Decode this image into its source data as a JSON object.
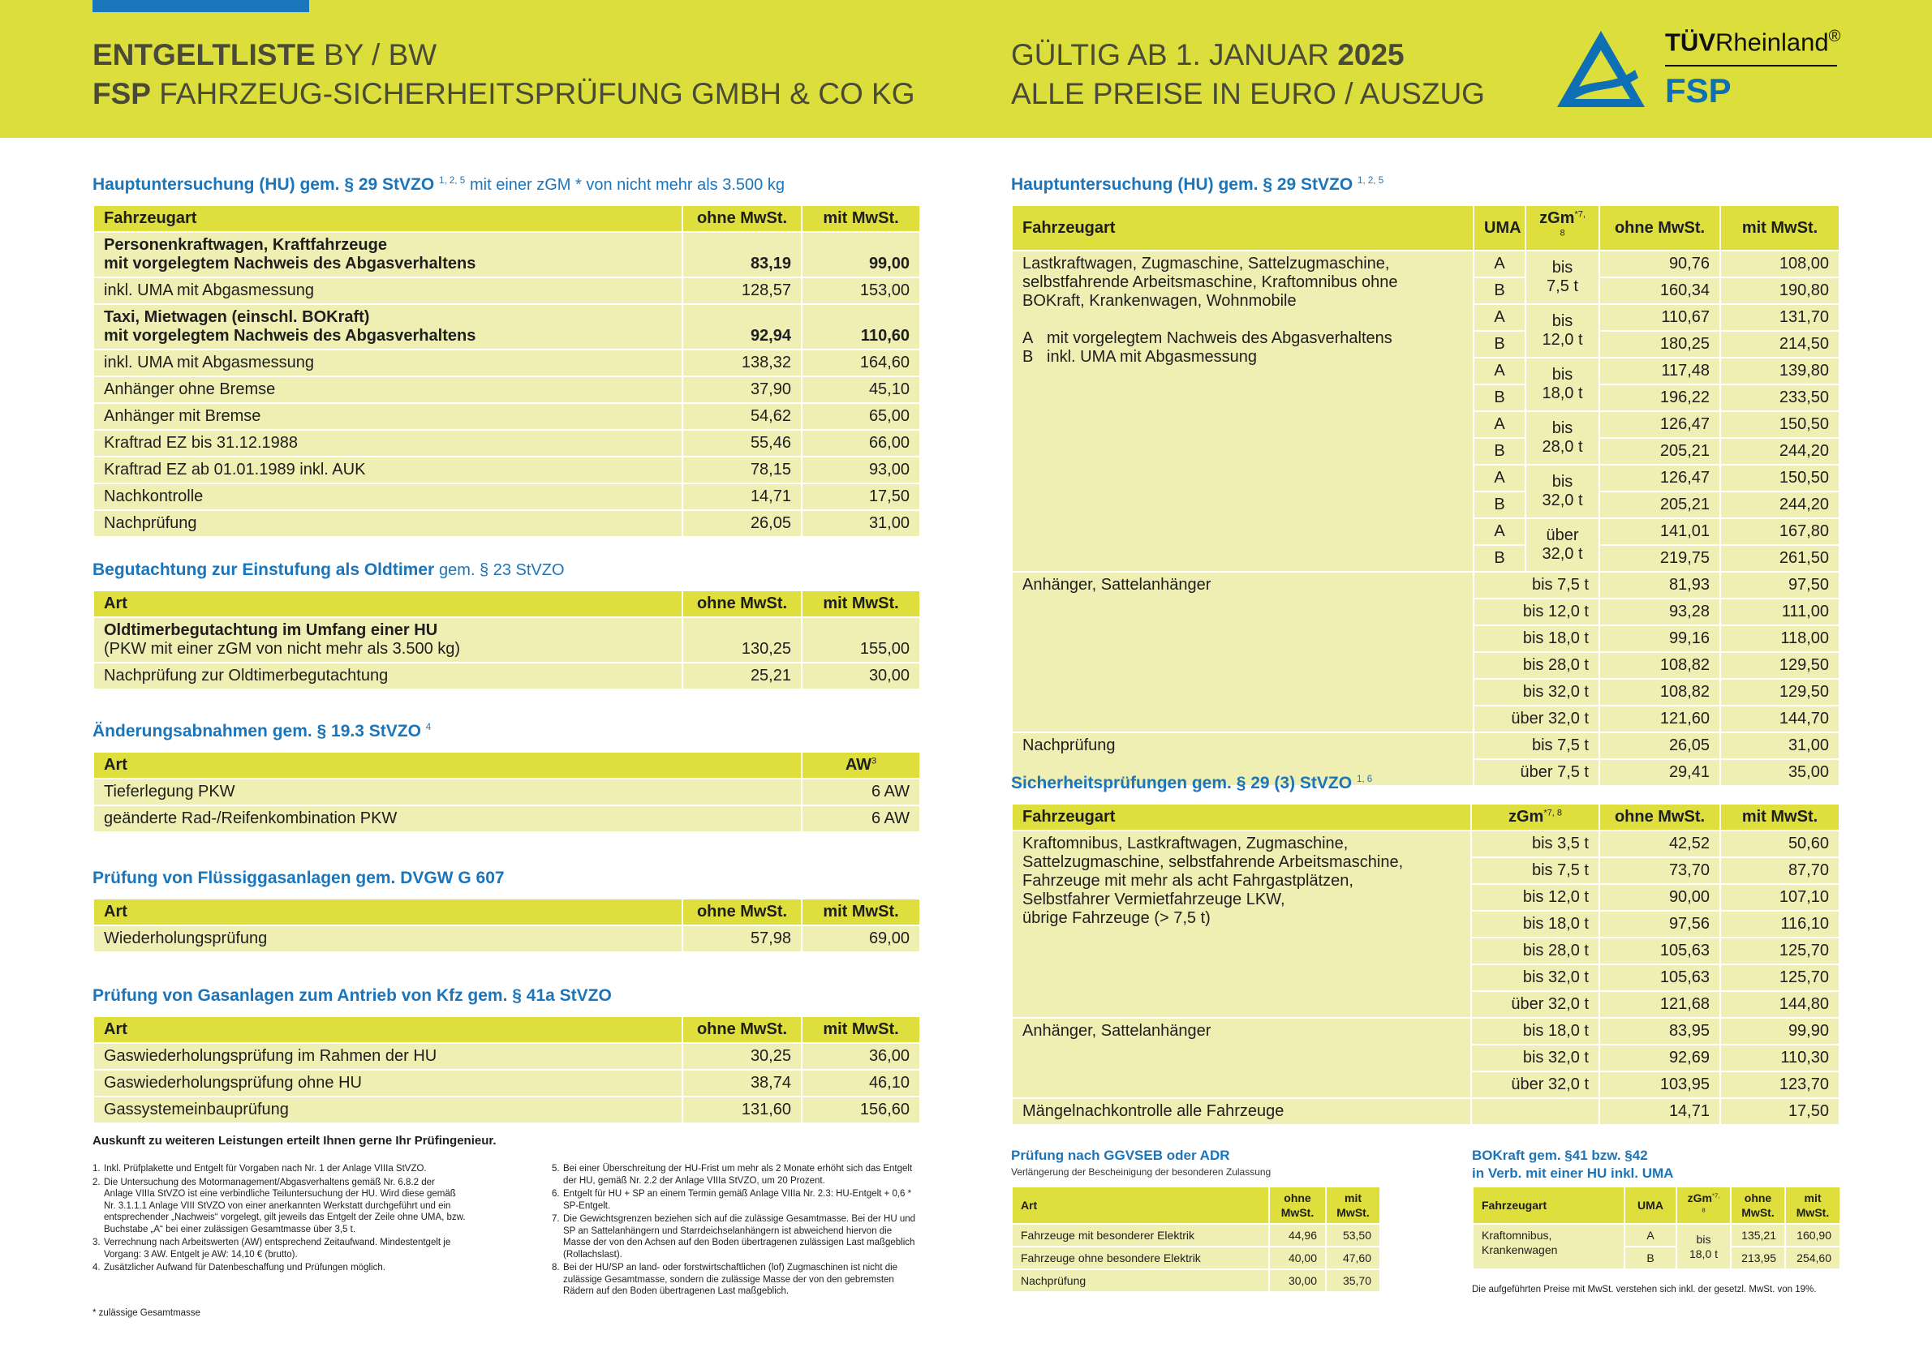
{
  "header": {
    "title_bold": "ENTGELTLISTE",
    "title_rest": "BY / BW",
    "company_bold": "FSP",
    "company_rest": "FAHRZEUG-SICHERHEITSPRÜFUNG GMBH & CO KG",
    "valid": "GÜLTIG AB 1. JANUAR",
    "valid_year": "2025",
    "prices": "ALLE PREISE IN EURO / AUSZUG",
    "logo_tuv": "TÜV",
    "logo_rheinland": "Rheinland",
    "logo_reg": "®",
    "logo_fsp": "FSP"
  },
  "sections": {
    "hu_pkw": {
      "title": {
        "text": "Hauptuntersuchung (HU) gem. § 29 StVZO",
        "sup": "1, 2, 5",
        "suffix": "mit einer zGM * von nicht mehr als 3.500 kg"
      },
      "headers": [
        "Fahrzeugart",
        "ohne MwSt.",
        "mit MwSt."
      ],
      "rows": [
        {
          "cells": [
            "Personenkraftwagen, Kraftfahrzeuge\nmit vorgelegtem Nachweis des Abgasverhaltens",
            "83,19",
            "99,00"
          ],
          "bold": true
        },
        {
          "cells": [
            "inkl. UMA mit Abgasmessung",
            "128,57",
            "153,00"
          ]
        },
        {
          "cells": [
            "Taxi, Mietwagen (einschl. BOKraft)\nmit vorgelegtem Nachweis des Abgasverhaltens",
            "92,94",
            "110,60"
          ],
          "bold": true
        },
        {
          "cells": [
            "inkl. UMA mit Abgasmessung",
            "138,32",
            "164,60"
          ]
        },
        {
          "cells": [
            "Anhänger ohne Bremse",
            "37,90",
            "45,10"
          ]
        },
        {
          "cells": [
            "Anhänger mit Bremse",
            "54,62",
            "65,00"
          ]
        },
        {
          "cells": [
            "Kraftrad EZ bis 31.12.1988",
            "55,46",
            "66,00"
          ]
        },
        {
          "cells": [
            "Kraftrad EZ ab 01.01.1989 inkl. AUK",
            "78,15",
            "93,00"
          ]
        },
        {
          "cells": [
            "Nachkontrolle",
            "14,71",
            "17,50"
          ]
        },
        {
          "cells": [
            "Nachprüfung",
            "26,05",
            "31,00"
          ]
        }
      ]
    },
    "oldtimer": {
      "title": {
        "text": "Begutachtung zur Einstufung als Oldtimer",
        "suffix": "gem. § 23 StVZO"
      },
      "headers": [
        "Art",
        "ohne MwSt.",
        "mit MwSt."
      ],
      "rows": [
        {
          "heading": "Oldtimerbegutachtung im Umfang einer HU",
          "cells": [
            "(PKW mit einer zGM von nicht mehr als 3.500 kg)",
            "130,25",
            "155,00"
          ]
        },
        {
          "cells": [
            "Nachprüfung zur Oldtimerbegutachtung",
            "25,21",
            "30,00"
          ]
        }
      ]
    },
    "aenderung": {
      "title": {
        "text": "Änderungsabnahmen gem. § 19.3 StVZO",
        "sup": "4"
      },
      "headers": [
        "Art",
        {
          "text": "AW",
          "sup": "3"
        }
      ],
      "rows": [
        {
          "cells": [
            "Tieferlegung PKW",
            "6 AW"
          ]
        },
        {
          "cells": [
            "geänderte Rad-/Reifenkombination PKW",
            "6 AW"
          ]
        }
      ]
    },
    "fluessig": {
      "title": {
        "text": "Prüfung von Flüssiggasanlagen gem. DVGW G 607"
      },
      "headers": [
        "Art",
        "ohne MwSt.",
        "mit MwSt."
      ],
      "rows": [
        {
          "cells": [
            "Wiederholungsprüfung",
            "57,98",
            "69,00"
          ]
        }
      ]
    },
    "gas": {
      "title": {
        "text": "Prüfung von Gasanlagen zum Antrieb von Kfz gem. § 41a StVZO"
      },
      "headers": [
        "Art",
        "ohne MwSt.",
        "mit MwSt."
      ],
      "rows": [
        {
          "cells": [
            "Gaswiederholungsprüfung im Rahmen der HU",
            "30,25",
            "36,00"
          ]
        },
        {
          "cells": [
            "Gaswiederholungsprüfung ohne HU",
            "38,74",
            "46,10"
          ]
        },
        {
          "cells": [
            "Gassystemeinbauprüfung",
            "131,60",
            "156,60"
          ]
        }
      ]
    },
    "hu_heavy": {
      "title": {
        "text": "Hauptuntersuchung (HU) gem. § 29 StVZO",
        "sup": "1, 2, 5"
      },
      "headers": [
        "Fahrzeugart",
        "UMA",
        {
          "text": "zGm",
          "sup": "*7, 8"
        },
        "ohne MwSt.",
        "mit MwSt."
      ],
      "groups": [
        {
          "label": "Lastkraftwagen, Zugmaschine, Sattelzugmaschine,\nselbstfahrende Arbeitsmaschine, Kraftomnibus ohne\nBOKraft, Krankenwagen, Wohnmobile",
          "legend": [
            {
              "key": "A",
              "text": "mit vorgelegtem Nachweis des Abgasverhaltens"
            },
            {
              "key": "B",
              "text": "inkl. UMA mit Abgasmessung"
            }
          ],
          "classes": [
            {
              "zgm": "bis\n7,5 t",
              "rows": [
                [
                  "A",
                  "90,76",
                  "108,00"
                ],
                [
                  "B",
                  "160,34",
                  "190,80"
                ]
              ]
            },
            {
              "zgm": "bis\n12,0 t",
              "rows": [
                [
                  "A",
                  "110,67",
                  "131,70"
                ],
                [
                  "B",
                  "180,25",
                  "214,50"
                ]
              ]
            },
            {
              "zgm": "bis\n18,0 t",
              "rows": [
                [
                  "A",
                  "117,48",
                  "139,80"
                ],
                [
                  "B",
                  "196,22",
                  "233,50"
                ]
              ]
            },
            {
              "zgm": "bis\n28,0 t",
              "rows": [
                [
                  "A",
                  "126,47",
                  "150,50"
                ],
                [
                  "B",
                  "205,21",
                  "244,20"
                ]
              ]
            },
            {
              "zgm": "bis\n32,0 t",
              "rows": [
                [
                  "A",
                  "126,47",
                  "150,50"
                ],
                [
                  "B",
                  "205,21",
                  "244,20"
                ]
              ]
            },
            {
              "zgm": "über\n32,0 t",
              "rows": [
                [
                  "A",
                  "141,01",
                  "167,80"
                ],
                [
                  "B",
                  "219,75",
                  "261,50"
                ]
              ]
            }
          ]
        },
        {
          "label": "Anhänger, Sattelanhänger",
          "rows": [
            [
              "bis 7,5 t",
              "81,93",
              "97,50"
            ],
            [
              "bis 12,0 t",
              "93,28",
              "111,00"
            ],
            [
              "bis 18,0 t",
              "99,16",
              "118,00"
            ],
            [
              "bis 28,0 t",
              "108,82",
              "129,50"
            ],
            [
              "bis 32,0 t",
              "108,82",
              "129,50"
            ],
            [
              "über 32,0 t",
              "121,60",
              "144,70"
            ]
          ]
        },
        {
          "label": "Nachprüfung",
          "rows": [
            [
              "bis 7,5 t",
              "26,05",
              "31,00"
            ],
            [
              "über 7,5 t",
              "29,41",
              "35,00"
            ]
          ]
        }
      ]
    },
    "sicherheit": {
      "title": {
        "text": "Sicherheitsprüfungen gem. § 29 (3) StVZO",
        "sup": "1, 6"
      },
      "headers": [
        "Fahrzeugart",
        {
          "text": "zGm",
          "sup": "*7, 8"
        },
        "ohne MwSt.",
        "mit MwSt."
      ],
      "groups": [
        {
          "label": "Kraftomnibus, Lastkraftwagen, Zugmaschine,\nSattelzugmaschine, selbstfahrende Arbeitsmaschine,\nFahrzeuge mit mehr als acht Fahrgastplätzen,\nSelbstfahrer Vermietfahrzeuge LKW,\nübrige Fahrzeuge (> 7,5 t)",
          "rows": [
            [
              "bis 3,5 t",
              "42,52",
              "50,60"
            ],
            [
              "bis 7,5 t",
              "73,70",
              "87,70"
            ],
            [
              "bis 12,0 t",
              "90,00",
              "107,10"
            ],
            [
              "bis 18,0 t",
              "97,56",
              "116,10"
            ],
            [
              "bis 28,0 t",
              "105,63",
              "125,70"
            ],
            [
              "bis 32,0 t",
              "105,63",
              "125,70"
            ],
            [
              "über 32,0 t",
              "121,68",
              "144,80"
            ]
          ]
        },
        {
          "label": "Anhänger, Sattelanhänger",
          "rows": [
            [
              "bis 18,0 t",
              "83,95",
              "99,90"
            ],
            [
              "bis 32,0 t",
              "92,69",
              "110,30"
            ],
            [
              "über 32,0 t",
              "103,95",
              "123,70"
            ]
          ]
        },
        {
          "label": "Mängelnachkontrolle alle Fahrzeuge",
          "rows": [
            [
              "14,71",
              "17,50"
            ]
          ]
        }
      ]
    },
    "ggvseb": {
      "title": {
        "text": "Prüfung nach GGVSEB oder ADR"
      },
      "subtitle": "Verlängerung der Bescheinigung der besonderen Zulassung",
      "headers": [
        "Art",
        "ohne\nMwSt.",
        "mit\nMwSt."
      ],
      "rows": [
        {
          "cells": [
            "Fahrzeuge mit besonderer Elektrik",
            "44,96",
            "53,50"
          ]
        },
        {
          "cells": [
            "Fahrzeuge ohne besondere Elektrik",
            "40,00",
            "47,60"
          ]
        },
        {
          "cells": [
            "Nachprüfung",
            "30,00",
            "35,70"
          ]
        }
      ]
    },
    "bokraft": {
      "title": {
        "text": "BOKraft gem. §41 bzw. §42\nin Verb. mit einer HU inkl. UMA"
      },
      "headers": [
        "Fahrzeugart",
        "UMA",
        {
          "text": "zGm",
          "sup": "*7, 8"
        },
        "ohne\nMwSt.",
        "mit\nMwSt."
      ],
      "groups": [
        {
          "label": "Kraftomnibus,\nKrankenwagen",
          "classes": [
            {
              "zgm": "bis\n18,0 t",
              "rows": [
                [
                  "A",
                  "135,21",
                  "160,90"
                ],
                [
                  "B",
                  "213,95",
                  "254,60"
                ]
              ]
            }
          ]
        }
      ],
      "note": "Die aufgeführten Preise mit MwSt. verstehen sich inkl. der gesetzl. MwSt. von 19%."
    }
  },
  "info": "Auskunft zu weiteren Leistungen erteilt Ihnen gerne Ihr Prüfingenieur.",
  "footnotes": [
    {
      "num": "1.",
      "text": "Inkl. Prüfplakette und Entgelt für Vorgaben nach Nr. 1 der Anlage VIIIa StVZO."
    },
    {
      "num": "2.",
      "text": "Die Untersuchung des Motormanagement/Abgasverhaltens gemäß Nr. 6.8.2 der Anlage VIIIa StVZO ist eine verbindliche Teiluntersuchung der HU. Wird diese gemäß Nr. 3.1.1.1 Anlage VIII StVZO von einer anerkannten Werkstatt durchgeführt und ein entsprechender „Nachweis“ vorgelegt, gilt jeweils das Entgelt der Zeile ohne UMA, bzw. Buchstabe „A“ bei einer zulässigen Gesamtmasse über 3,5 t."
    },
    {
      "num": "3.",
      "text": "Verrechnung nach Arbeitswerten (AW) entsprechend Zeitaufwand. Mindestentgelt je Vorgang: 3 AW. Entgelt je AW: 14,10 € (brutto)."
    },
    {
      "num": "4.",
      "text": "Zusätzlicher Aufwand für Datenbeschaffung und Prüfungen möglich."
    },
    {
      "num": "5.",
      "text": "Bei einer Überschreitung der HU-Frist um mehr als 2 Monate erhöht sich das Entgelt der HU, gemäß Nr. 2.2 der Anlage VIIIa StVZO, um 20 Prozent."
    },
    {
      "num": "6.",
      "text": "Entgelt für HU + SP an einem Termin gemäß Anlage VIIIa Nr. 2.3: HU-Entgelt + 0,6 * SP-Entgelt."
    },
    {
      "num": "7.",
      "text": "Die Gewichtsgrenzen beziehen sich auf die zulässige Gesamtmasse. Bei der HU und SP an Sattelanhängern und Starrdeichselanhängern ist abweichend hiervon die Masse der von den Achsen auf den Boden übertragenen zulässigen Last maßgeblich (Rollachslast)."
    },
    {
      "num": "8.",
      "text": "Bei der HU/SP an land- oder forstwirtschaftlichen (lof) Zugmaschinen ist nicht die zulässige Gesamtmasse, sondern die zulässige Masse der von den gebremsten Rädern auf den Boden übertragenen Last maßgeblich."
    }
  ],
  "asterisk_note": "* zulässige Gesamtmasse"
}
